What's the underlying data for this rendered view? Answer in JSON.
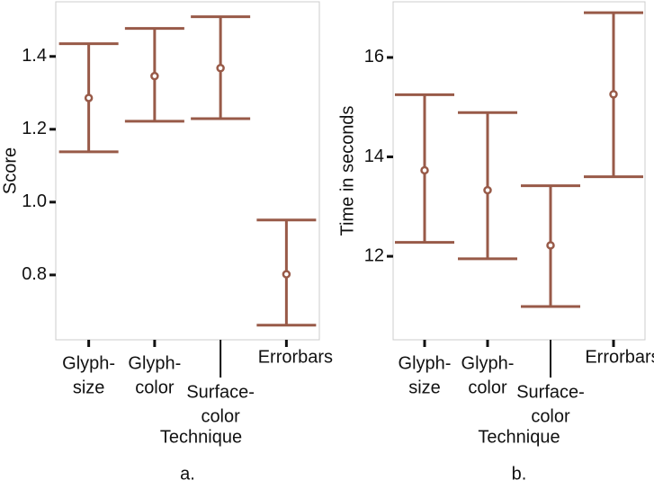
{
  "chart_data": [
    {
      "type": "errorbar",
      "caption": "a.",
      "x_label": "Technique",
      "y_label": "Score",
      "categories": [
        [
          "Glyph-",
          "size"
        ],
        [
          "Glyph-",
          "color"
        ],
        [
          "Surface-",
          "color"
        ],
        [
          "Errorbars"
        ]
      ],
      "values": [
        1.286,
        1.346,
        1.368,
        0.802
      ],
      "lower": [
        1.138,
        1.222,
        1.229,
        0.662
      ],
      "upper": [
        1.435,
        1.477,
        1.509,
        0.951
      ],
      "color": "#985a48",
      "ylim": [
        0.622,
        1.55
      ],
      "yticks": [
        0.8,
        {
          "value": 1,
          "label": "1.0"
        },
        1.2,
        1.4
      ]
    },
    {
      "type": "errorbar",
      "caption": "b.",
      "x_label": "Technique",
      "y_label": "Time in seconds",
      "categories": [
        [
          "Glyph-",
          "size"
        ],
        [
          "Glyph-",
          "color"
        ],
        [
          "Surface-",
          "color"
        ],
        [
          "Errorbars"
        ]
      ],
      "values": [
        13.73,
        13.33,
        12.22,
        15.26
      ],
      "lower": [
        12.28,
        11.95,
        10.99,
        13.6
      ],
      "upper": [
        15.25,
        14.89,
        13.42,
        16.9
      ],
      "color": "#985a48",
      "ylim": [
        10.32,
        17.12
      ],
      "yticks": [
        12,
        14,
        16
      ]
    }
  ]
}
